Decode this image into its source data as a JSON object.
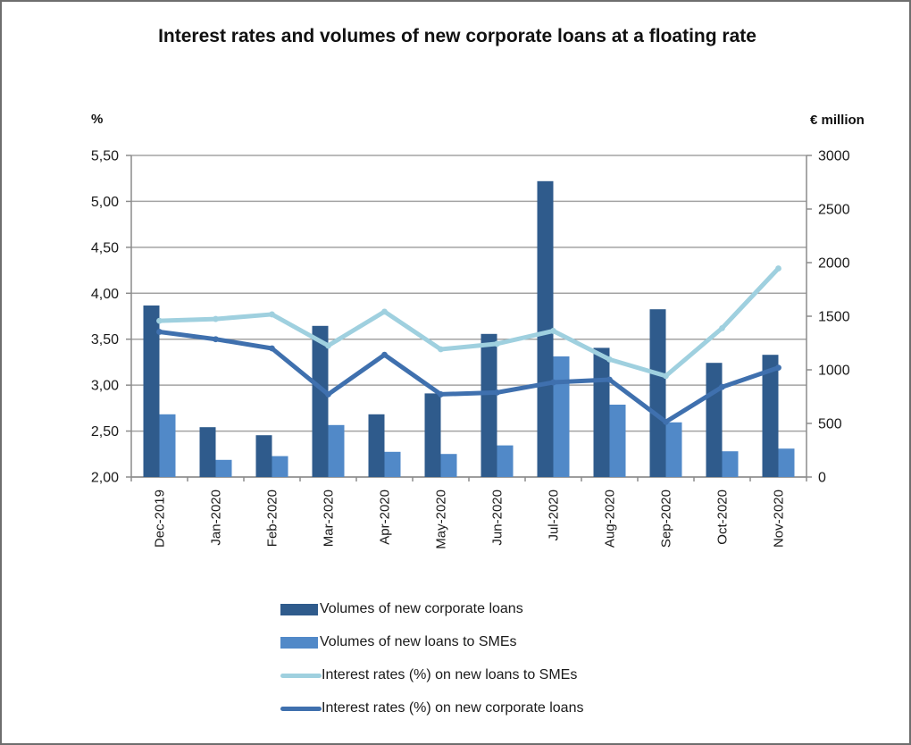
{
  "title": "Interest rates and volumes of new corporate loans at a floating rate",
  "left_axis_unit": "%",
  "right_axis_unit": "€ million",
  "chart_data": {
    "type": "bar+line combo (dual axis)",
    "categories": [
      "Dec-2019",
      "Jan-2020",
      "Feb-2020",
      "Mar-2020",
      "Apr-2020",
      "May-2020",
      "Jun-2020",
      "Jul-2020",
      "Aug-2020",
      "Sep-2020",
      "Oct-2020",
      "Nov-2020"
    ],
    "series": [
      {
        "key": "volumes-corporate",
        "name": "Volumes of new corporate loans",
        "type": "bar",
        "axis": "right",
        "color": "#2f5b8c",
        "values": [
          1600,
          465,
          390,
          1410,
          585,
          780,
          1335,
          2760,
          1205,
          1565,
          1065,
          1140
        ]
      },
      {
        "key": "volumes-smes",
        "name": "Volumes of new loans to SMEs",
        "type": "bar",
        "axis": "right",
        "color": "#5189c8",
        "values": [
          585,
          160,
          195,
          485,
          235,
          215,
          295,
          1125,
          675,
          510,
          240,
          265
        ]
      },
      {
        "key": "rates-smes",
        "name": "Interest rates (%) on new loans to SMEs",
        "type": "line",
        "axis": "left",
        "color": "#9fd0df",
        "values": [
          3.7,
          3.72,
          3.77,
          3.43,
          3.8,
          3.39,
          3.45,
          3.59,
          3.28,
          3.1,
          3.62,
          4.27
        ]
      },
      {
        "key": "rates-corporate",
        "name": "Interest rates (%) on new corporate loans",
        "type": "line",
        "axis": "left",
        "color": "#3f70ae",
        "values": [
          3.58,
          3.5,
          3.4,
          2.9,
          3.33,
          2.9,
          2.92,
          3.03,
          3.06,
          2.6,
          2.98,
          3.19
        ]
      }
    ],
    "left_axis": {
      "label": "%",
      "min": 2.0,
      "max": 5.5,
      "step": 0.5,
      "tick_labels": [
        "2,00",
        "2,50",
        "3,00",
        "3,50",
        "4,00",
        "4,50",
        "5,00",
        "5,50"
      ]
    },
    "right_axis": {
      "label": "€ million",
      "min": 0,
      "max": 3000,
      "step": 500,
      "tick_labels": [
        "0",
        "500",
        "1000",
        "1500",
        "2000",
        "2500",
        "3000"
      ]
    },
    "grid": true,
    "legend_position": "bottom"
  }
}
